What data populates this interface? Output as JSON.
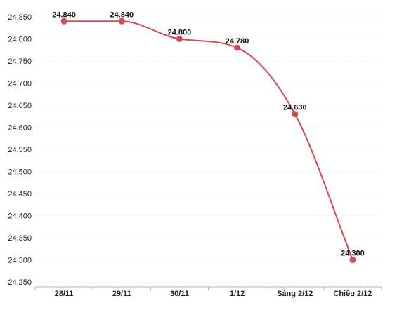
{
  "chart_data": {
    "type": "line",
    "title": "",
    "xlabel": "",
    "ylabel": "",
    "categories": [
      "28/11",
      "29/11",
      "30/11",
      "1/12",
      "Sáng 2/12",
      "Chiều 2/12"
    ],
    "values": [
      24840,
      24840,
      24800,
      24780,
      24630,
      24300
    ],
    "data_labels": [
      "24.840",
      "24.840",
      "24.800",
      "24.780",
      "24.630",
      "24.300"
    ],
    "y_ticks": [
      24250,
      24300,
      24350,
      24400,
      24450,
      24500,
      24550,
      24600,
      24650,
      24700,
      24750,
      24800,
      24850
    ],
    "y_tick_labels": [
      "24.250",
      "24.300",
      "24.350",
      "24.400",
      "24.450",
      "24.500",
      "24.550",
      "24.600",
      "24.650",
      "24.700",
      "24.750",
      "24.800",
      "24.850"
    ],
    "ylim": [
      24250,
      24850
    ],
    "grid": true,
    "legend": "none",
    "smooth": true,
    "line_color": "#d24b55",
    "marker_color": "#d24b55",
    "grid_color": "#e3e3e3"
  }
}
